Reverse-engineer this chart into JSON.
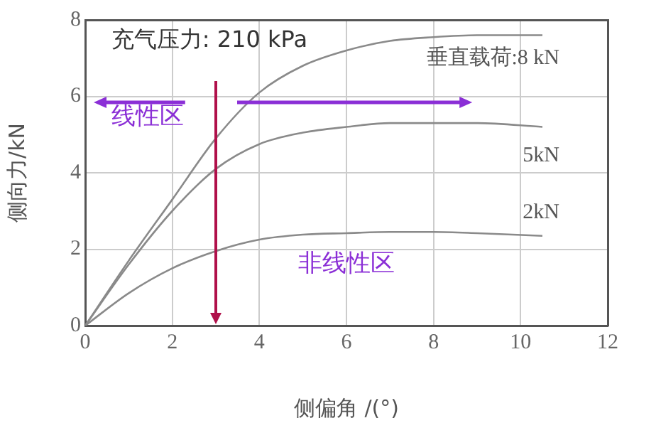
{
  "chart_data": {
    "type": "line",
    "xlabel": "侧偏角 /(°)",
    "ylabel": "侧向力/kN",
    "annotations": [
      "充气压力: 210 kPa",
      "线性区",
      "非线性区"
    ],
    "x": [
      0,
      1,
      2,
      3,
      4,
      5,
      6,
      7,
      8,
      9,
      10.5
    ],
    "series": [
      {
        "name": "垂直载荷:8 kN",
        "color": "#8a8a8a",
        "values": [
          0,
          1.7,
          3.3,
          4.9,
          6.1,
          6.8,
          7.2,
          7.45,
          7.55,
          7.6,
          7.6
        ]
      },
      {
        "name": "5kN",
        "color": "#8a8a8a",
        "values": [
          0,
          1.6,
          3.0,
          4.1,
          4.75,
          5.05,
          5.2,
          5.3,
          5.3,
          5.3,
          5.2
        ]
      },
      {
        "name": "2kN",
        "color": "#8a8a8a",
        "values": [
          0,
          0.85,
          1.5,
          1.95,
          2.25,
          2.38,
          2.42,
          2.45,
          2.45,
          2.42,
          2.35
        ]
      }
    ],
    "xlim": [
      0,
      12
    ],
    "xticks": [
      0,
      2,
      4,
      6,
      8,
      10,
      12
    ],
    "ylim": [
      0,
      8
    ],
    "yticks": [
      0,
      2,
      4,
      6,
      8
    ],
    "ref_lines": [
      {
        "axis": "x",
        "value": 3,
        "color": "#b0104a"
      }
    ],
    "grid": true,
    "legend": false,
    "marker": "none",
    "line_style": "solid"
  }
}
